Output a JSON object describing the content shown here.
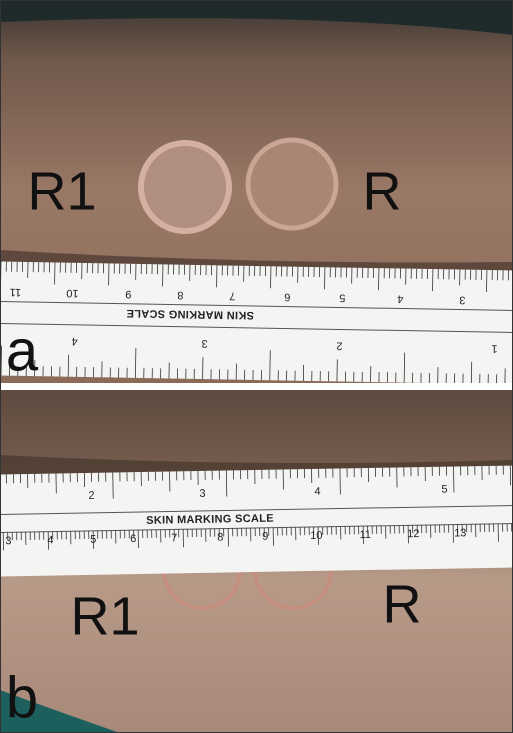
{
  "panels": [
    {
      "label": "a",
      "markers": [
        "R1",
        "R"
      ],
      "ruler": {
        "title": "SKIN MARKING SCALE",
        "top_numbers": [
          "11",
          "10",
          "9",
          "8",
          "7",
          "6",
          "5",
          "4",
          "3"
        ],
        "bottom_numbers": [
          "4",
          "3",
          "2",
          "1"
        ]
      }
    },
    {
      "label": "b",
      "markers": [
        "R1",
        "R"
      ],
      "ruler": {
        "title": "SKIN MARKING SCALE",
        "top_numbers": [
          "2",
          "3",
          "4",
          "5"
        ],
        "bottom_numbers": [
          "3",
          "4",
          "5",
          "6",
          "7",
          "8",
          "9",
          "10",
          "11",
          "12",
          "13"
        ]
      }
    }
  ]
}
